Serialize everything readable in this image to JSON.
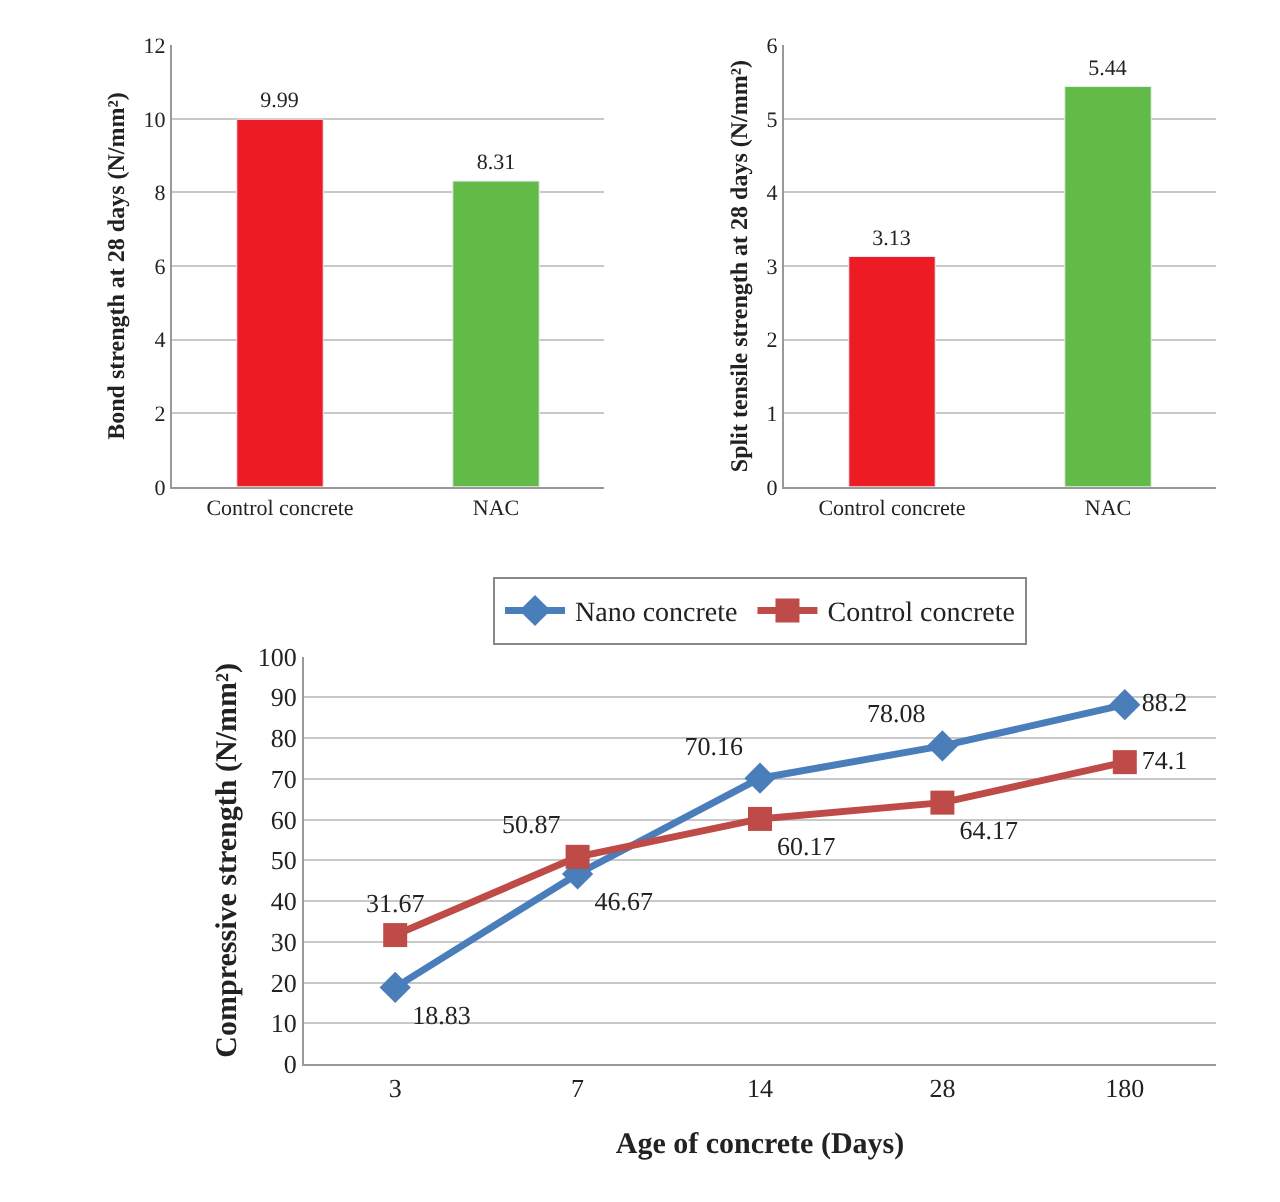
{
  "chart_data": [
    {
      "type": "bar",
      "ylabel": "Bond strength at 28 days (N/mm²)",
      "categories": [
        "Control concrete",
        "NAC"
      ],
      "values": [
        9.99,
        8.31
      ],
      "colors": [
        "#ed1c24",
        "#62bb47"
      ],
      "ylim": [
        0,
        12
      ],
      "yticks": [
        0,
        2,
        4,
        6,
        8,
        10,
        12
      ],
      "grid": "y",
      "data_labels": true
    },
    {
      "type": "bar",
      "ylabel": "Split tensile strength at 28 days (N/mm²)",
      "categories": [
        "Control concrete",
        "NAC"
      ],
      "values": [
        3.13,
        5.44
      ],
      "colors": [
        "#ed1c24",
        "#62bb47"
      ],
      "ylim": [
        0,
        6
      ],
      "yticks": [
        0,
        1,
        2,
        3,
        4,
        5,
        6
      ],
      "grid": "y",
      "data_labels": true
    },
    {
      "type": "line",
      "xlabel": "Age of concrete (Days)",
      "ylabel": "Compressive strength (N/mm²)",
      "categories": [
        "3",
        "7",
        "14",
        "28",
        "180"
      ],
      "series": [
        {
          "name": "Nano concrete",
          "color": "#4a7ebb",
          "marker": "diamond",
          "values": [
            18.83,
            46.67,
            70.16,
            78.08,
            88.2
          ]
        },
        {
          "name": "Control concrete",
          "color": "#be4b48",
          "marker": "square",
          "values": [
            31.67,
            50.87,
            60.17,
            64.17,
            74.1
          ]
        }
      ],
      "ylim": [
        0,
        100
      ],
      "yticks": [
        0,
        10,
        20,
        30,
        40,
        50,
        60,
        70,
        80,
        90,
        100
      ],
      "grid": "y",
      "legend": "top",
      "data_labels": true
    }
  ]
}
